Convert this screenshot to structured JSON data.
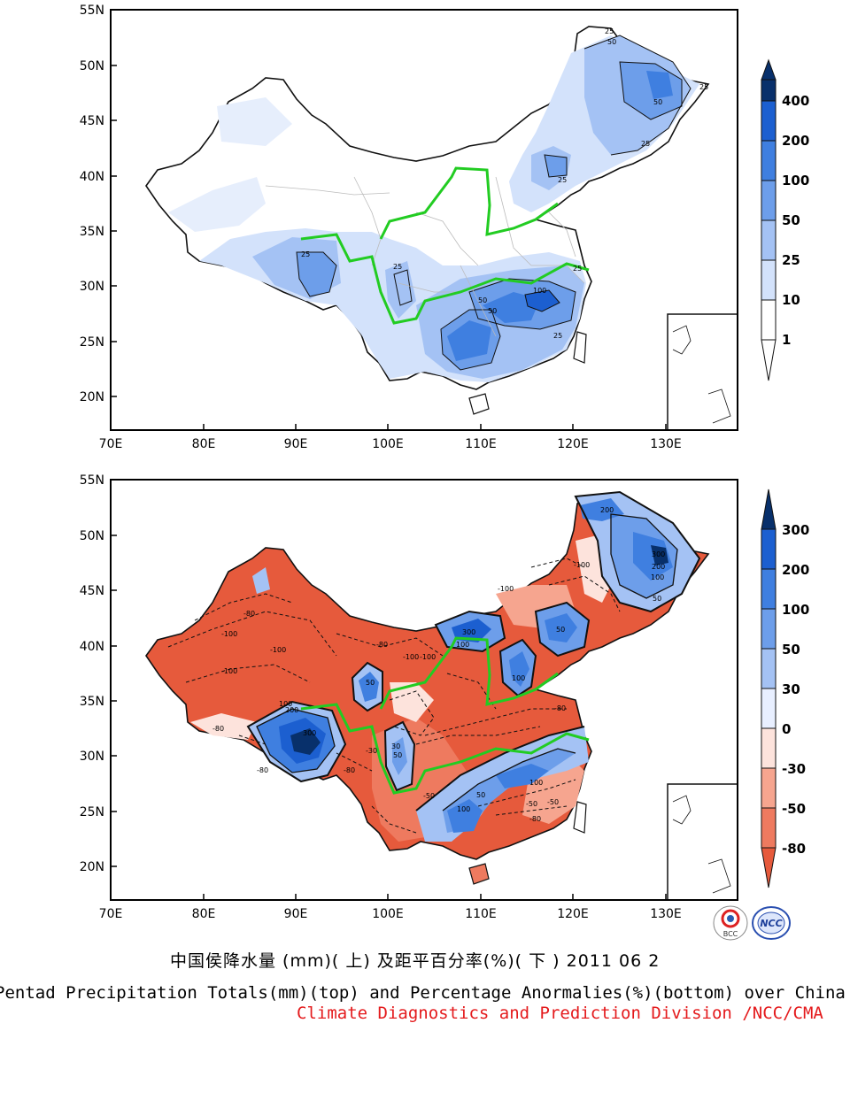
{
  "lat_ticks": [
    "55N",
    "50N",
    "45N",
    "40N",
    "35N",
    "30N",
    "25N",
    "20N"
  ],
  "lon_ticks": [
    "70E",
    "80E",
    "90E",
    "100E",
    "110E",
    "120E",
    "130E"
  ],
  "top_map": {
    "colorbar_levels": [
      "400",
      "200",
      "100",
      "50",
      "25",
      "10",
      "1"
    ],
    "colorbar_colors": [
      "#08306b",
      "#1c5fd0",
      "#3f7fe0",
      "#6d9eea",
      "#a4c2f4",
      "#d3e2fb",
      "#ffffff"
    ],
    "contour_labels": [
      "25",
      "25",
      "25",
      "25",
      "25",
      "25",
      "50",
      "50",
      "50",
      "50",
      "100",
      "25",
      "25"
    ]
  },
  "bottom_map": {
    "colorbar_levels": [
      "300",
      "200",
      "100",
      "50",
      "30",
      "0",
      "-30",
      "-50",
      "-80"
    ],
    "colorbar_colors": [
      "#08306b",
      "#1c5fd0",
      "#3f7fe0",
      "#6d9eea",
      "#a4c2f4",
      "#e8efff",
      "#fde3dc",
      "#f6a58f",
      "#ee7a5f",
      "#e65a3c"
    ],
    "contour_labels": [
      "200",
      "300",
      "200",
      "100",
      "50",
      "-100",
      "-80",
      "-100",
      "-100",
      "-100",
      "-80",
      "300",
      "100",
      "200",
      "100",
      "300",
      "-80",
      "-80",
      "-100",
      "-100",
      "-100",
      "30",
      "50",
      "-30",
      "50",
      "100",
      "50",
      "-80",
      "100",
      "50",
      "100",
      "-50",
      "-50",
      "-80",
      "-80",
      "-50"
    ]
  },
  "captions": {
    "chinese": "中国侯降水量 (mm)( 上) 及距平百分率(%)( 下 ) 2011 06 2",
    "english": "Pentad Precipitation Totals(mm)(top) and Percentage Anormalies(%)(bottom) over China",
    "credit": "Climate Diagnostics and Prediction Division /NCC/CMA"
  },
  "logos": {
    "left": "BCC",
    "right": "NCC"
  }
}
